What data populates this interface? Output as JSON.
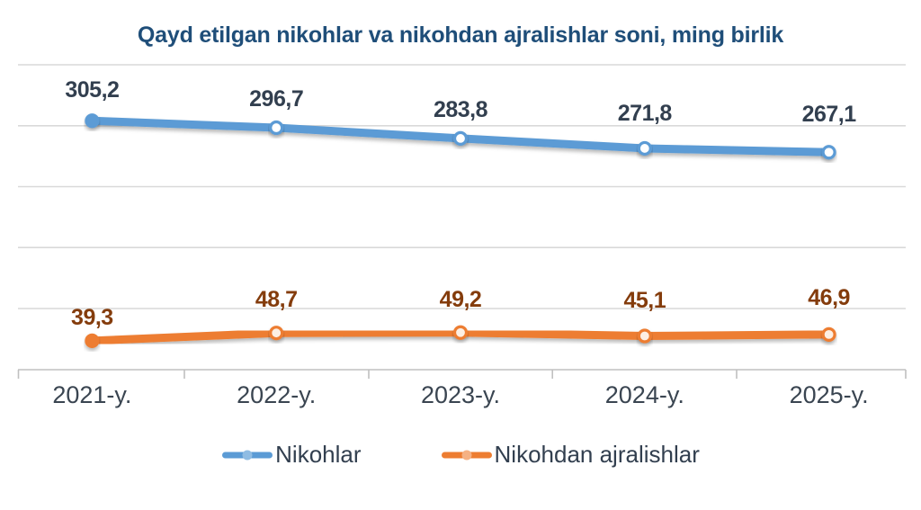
{
  "title": "Qayd etilgan nikohlar va nikohdan ajralishlar soni, ming birlik",
  "title_color": "#1F4E79",
  "chart_data": {
    "type": "line",
    "categories": [
      "2021-y.",
      "2022-y.",
      "2023-y.",
      "2024-y.",
      "2025-y."
    ],
    "series": [
      {
        "name": "Nikohlar",
        "color": "#5B9BD5",
        "label_color": "#323F4F",
        "values": [
          305.2,
          296.7,
          283.8,
          271.8,
          267.1
        ],
        "labels": [
          "305,2",
          "296,7",
          "283,8",
          "271,8",
          "267,1"
        ]
      },
      {
        "name": "Nikohdan ajralishlar",
        "color": "#ED7D31",
        "label_color": "#843C0C",
        "values": [
          39.3,
          48.7,
          49.2,
          45.1,
          46.9
        ],
        "labels": [
          "39,3",
          "48,7",
          "49,2",
          "45,1",
          "46,9"
        ]
      }
    ],
    "unit": "ming birlik",
    "ylim": [
      0,
      373
    ],
    "y_axis_labels_visible": false,
    "grid": true,
    "gridline_color": "#D9D9D9",
    "axis_color": "#C0C0C0",
    "legend_position": "bottom"
  },
  "axis": {
    "tick_labels": [
      "2021-y.",
      "2022-y.",
      "2023-y.",
      "2024-y.",
      "2025-y."
    ],
    "tick_label_color": "#3A4551"
  },
  "legend": {
    "text_color": "#323F4F",
    "items": [
      {
        "label": "Nikohlar",
        "color": "#5B9BD5",
        "dot_color": "#8FBCE3"
      },
      {
        "label": "Nikohdan ajralishlar",
        "color": "#ED7D31",
        "dot_color": "#F5B183"
      }
    ]
  }
}
